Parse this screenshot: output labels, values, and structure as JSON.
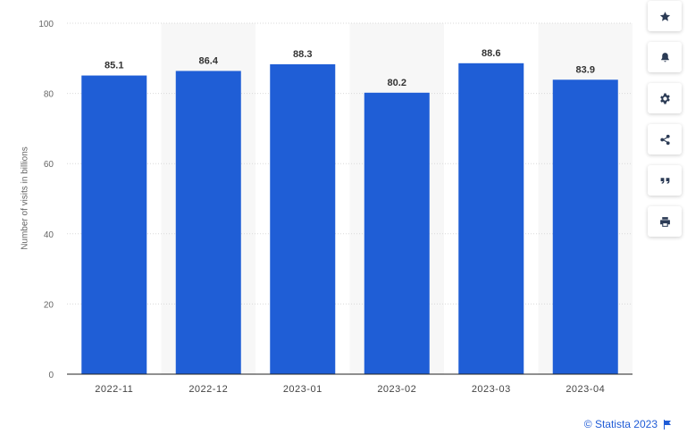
{
  "chart_data": {
    "type": "bar",
    "categories": [
      "2022-11",
      "2022-12",
      "2023-01",
      "2023-02",
      "2023-03",
      "2023-04"
    ],
    "values": [
      85.1,
      86.4,
      88.3,
      80.2,
      88.6,
      83.9
    ],
    "value_labels": [
      "85.1",
      "86.4",
      "88.3",
      "80.2",
      "88.6",
      "83.9"
    ],
    "title": "",
    "xlabel": "",
    "ylabel": "Number of visits in billions",
    "ylim": [
      0,
      100
    ],
    "yticks": [
      "0",
      "20",
      "40",
      "60",
      "80",
      "100"
    ],
    "grid": true,
    "bar_color": "#1f5ed6",
    "band_color": "#f7f7f7"
  },
  "toolbar": {
    "buttons": [
      {
        "name": "star-icon"
      },
      {
        "name": "bell-icon"
      },
      {
        "name": "gear-icon"
      },
      {
        "name": "share-icon"
      },
      {
        "name": "quote-icon"
      },
      {
        "name": "print-icon"
      }
    ]
  },
  "credit": {
    "text": "© Statista 2023"
  },
  "colors": {
    "accent": "#1f5bd6",
    "icon": "#2b3b55"
  }
}
